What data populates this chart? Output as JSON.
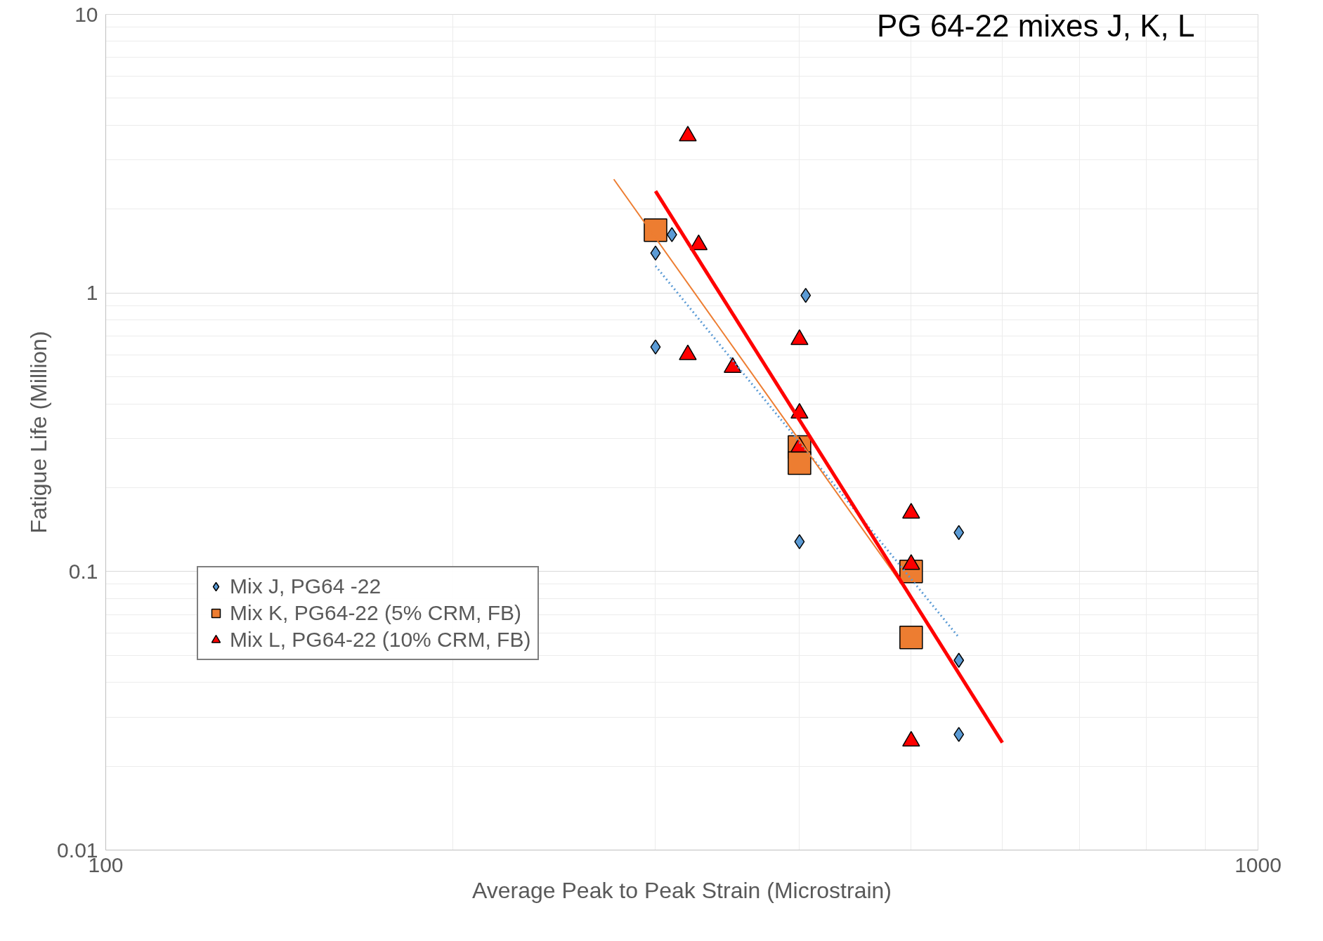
{
  "chart_data": {
    "type": "scatter",
    "xlabel": "Average Peak to Peak Strain (Microstrain)",
    "ylabel": "Fatigue Life (Million)",
    "annotations": [
      "PG 64-22 mixes J, K, L"
    ],
    "log": "xy",
    "grid": true,
    "legend": "left",
    "xlim": [
      100,
      1000
    ],
    "xticks": [
      100,
      1000
    ],
    "ylim": [
      0.01,
      10
    ],
    "yticks": [
      0.01,
      0.1,
      1,
      10
    ],
    "series": [
      {
        "name": "Mix J, PG64 -22",
        "color": "#5b9bd5",
        "marker": "diamond",
        "x": [
          300,
          310,
          300,
          405,
          400,
          550,
          550,
          550
        ],
        "values": [
          1.39,
          1.62,
          0.64,
          0.98,
          0.128,
          0.138,
          0.048,
          0.026
        ]
      },
      {
        "name": "Mix K, PG64-22 (5% CRM, FB)",
        "color": "#ed7d31",
        "marker": "square",
        "x": [
          300,
          400,
          400,
          500,
          500
        ],
        "values": [
          1.68,
          0.28,
          0.245,
          0.1,
          0.058
        ]
      },
      {
        "name": "Mix L, PG64-22 (10% CRM, FB)",
        "color": "#ff0000",
        "marker": "triangle",
        "x": [
          320,
          327,
          320,
          350,
          400,
          400,
          400,
          500,
          500,
          500
        ],
        "values": [
          3.66,
          1.49,
          0.6,
          0.54,
          0.68,
          0.37,
          0.28,
          0.162,
          0.106,
          0.0246
        ]
      },
      {
        "type": "line",
        "color": "#5b9bd5",
        "line_style": "dotted",
        "x": [
          300,
          550
        ],
        "values": [
          1.25,
          0.058
        ]
      },
      {
        "type": "line",
        "color": "#ed7d31",
        "line_style": "solid",
        "x": [
          276,
          491
        ],
        "values": [
          2.56,
          0.0897
        ]
      },
      {
        "type": "line",
        "color": "#ff0000",
        "line_style": "solid",
        "x": [
          300,
          600
        ],
        "values": [
          2.32,
          0.0243
        ]
      }
    ]
  }
}
